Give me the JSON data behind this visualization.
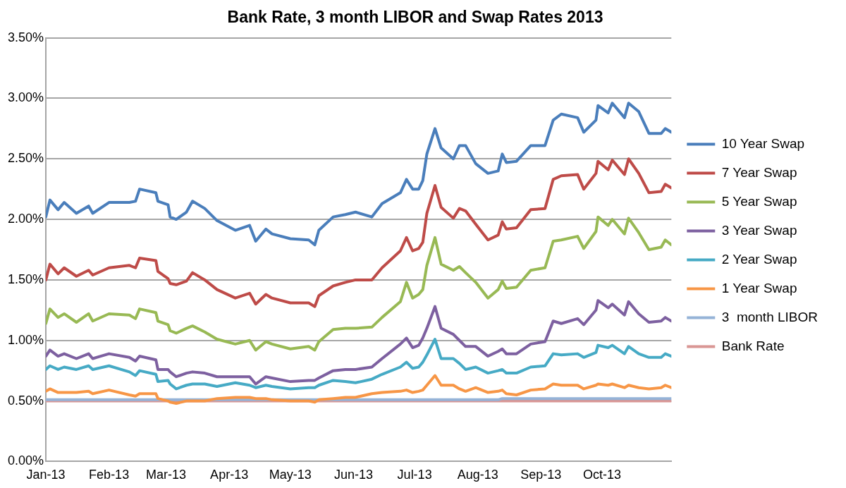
{
  "chart_data": {
    "type": "line",
    "title": "Bank Rate, 3 month LIBOR and Swap Rates 2013",
    "x": [
      "2013-01-01",
      "2013-01-03",
      "2013-01-07",
      "2013-01-10",
      "2013-01-16",
      "2013-01-22",
      "2013-01-24",
      "2013-02-01",
      "2013-02-11",
      "2013-02-14",
      "2013-02-16",
      "2013-02-24",
      "2013-02-25",
      "2013-03-02",
      "2013-03-03",
      "2013-03-06",
      "2013-03-11",
      "2013-03-14",
      "2013-03-20",
      "2013-03-26",
      "2013-04-04",
      "2013-04-11",
      "2013-04-14",
      "2013-04-19",
      "2013-04-22",
      "2013-05-01",
      "2013-05-10",
      "2013-05-13",
      "2013-05-15",
      "2013-05-22",
      "2013-05-28",
      "2013-06-02",
      "2013-06-10",
      "2013-06-15",
      "2013-06-24",
      "2013-06-27",
      "2013-06-30",
      "2013-07-03",
      "2013-07-05",
      "2013-07-07",
      "2013-07-11",
      "2013-07-14",
      "2013-07-20",
      "2013-07-23",
      "2013-07-26",
      "2013-07-31",
      "2013-08-06",
      "2013-08-11",
      "2013-08-13",
      "2013-08-15",
      "2013-08-20",
      "2013-08-27",
      "2013-09-03",
      "2013-09-07",
      "2013-09-11",
      "2013-09-19",
      "2013-09-22",
      "2013-09-28",
      "2013-09-29",
      "2013-10-04",
      "2013-10-06",
      "2013-10-12",
      "2013-10-14",
      "2013-10-19",
      "2013-10-24",
      "2013-10-30",
      "2013-11-01",
      "2013-11-04"
    ],
    "series": [
      {
        "name": "10 Year Swap",
        "color": "#4a7ebb",
        "values": [
          2.02,
          2.16,
          2.08,
          2.14,
          2.05,
          2.11,
          2.05,
          2.14,
          2.14,
          2.15,
          2.25,
          2.22,
          2.15,
          2.12,
          2.02,
          2.0,
          2.06,
          2.15,
          2.09,
          1.99,
          1.91,
          1.95,
          1.82,
          1.92,
          1.88,
          1.84,
          1.83,
          1.79,
          1.91,
          2.02,
          2.04,
          2.06,
          2.02,
          2.13,
          2.22,
          2.33,
          2.25,
          2.25,
          2.32,
          2.54,
          2.75,
          2.59,
          2.5,
          2.61,
          2.61,
          2.46,
          2.38,
          2.4,
          2.54,
          2.47,
          2.48,
          2.61,
          2.61,
          2.82,
          2.87,
          2.84,
          2.72,
          2.82,
          2.94,
          2.88,
          2.96,
          2.84,
          2.96,
          2.89,
          2.71,
          2.71,
          2.75,
          2.72
        ]
      },
      {
        "name": "7 Year Swap",
        "color": "#be4b48",
        "values": [
          1.5,
          1.63,
          1.55,
          1.6,
          1.53,
          1.58,
          1.54,
          1.6,
          1.62,
          1.6,
          1.68,
          1.66,
          1.57,
          1.51,
          1.47,
          1.46,
          1.49,
          1.56,
          1.5,
          1.42,
          1.35,
          1.39,
          1.3,
          1.38,
          1.35,
          1.31,
          1.31,
          1.28,
          1.37,
          1.45,
          1.48,
          1.5,
          1.5,
          1.6,
          1.74,
          1.85,
          1.74,
          1.76,
          1.81,
          2.05,
          2.28,
          2.1,
          2.01,
          2.09,
          2.07,
          1.96,
          1.83,
          1.87,
          1.98,
          1.92,
          1.93,
          2.08,
          2.09,
          2.33,
          2.36,
          2.37,
          2.25,
          2.38,
          2.48,
          2.41,
          2.49,
          2.37,
          2.5,
          2.38,
          2.22,
          2.23,
          2.29,
          2.26
        ]
      },
      {
        "name": "5 Year Swap",
        "color": "#98b954",
        "values": [
          1.14,
          1.26,
          1.19,
          1.22,
          1.15,
          1.22,
          1.16,
          1.22,
          1.21,
          1.18,
          1.26,
          1.23,
          1.16,
          1.13,
          1.08,
          1.06,
          1.1,
          1.12,
          1.07,
          1.01,
          0.97,
          1.0,
          0.92,
          0.99,
          0.97,
          0.93,
          0.95,
          0.92,
          0.99,
          1.09,
          1.1,
          1.1,
          1.11,
          1.19,
          1.32,
          1.48,
          1.35,
          1.38,
          1.42,
          1.62,
          1.85,
          1.63,
          1.58,
          1.61,
          1.56,
          1.48,
          1.35,
          1.42,
          1.49,
          1.43,
          1.44,
          1.58,
          1.6,
          1.82,
          1.83,
          1.86,
          1.76,
          1.9,
          2.02,
          1.95,
          2.0,
          1.88,
          2.01,
          1.89,
          1.75,
          1.77,
          1.83,
          1.79
        ]
      },
      {
        "name": "3 Year Swap",
        "color": "#7d60a0",
        "values": [
          0.87,
          0.92,
          0.87,
          0.89,
          0.85,
          0.89,
          0.85,
          0.89,
          0.86,
          0.83,
          0.87,
          0.84,
          0.76,
          0.76,
          0.74,
          0.7,
          0.73,
          0.74,
          0.73,
          0.7,
          0.7,
          0.7,
          0.64,
          0.7,
          0.69,
          0.66,
          0.67,
          0.67,
          0.69,
          0.75,
          0.76,
          0.76,
          0.78,
          0.85,
          0.97,
          1.02,
          0.94,
          0.96,
          1.02,
          1.1,
          1.28,
          1.1,
          1.05,
          1.0,
          0.95,
          0.95,
          0.87,
          0.91,
          0.93,
          0.89,
          0.89,
          0.97,
          0.99,
          1.16,
          1.14,
          1.18,
          1.13,
          1.25,
          1.33,
          1.27,
          1.3,
          1.21,
          1.32,
          1.22,
          1.15,
          1.16,
          1.19,
          1.16
        ]
      },
      {
        "name": "2 Year Swap",
        "color": "#46aac5",
        "values": [
          0.76,
          0.79,
          0.76,
          0.78,
          0.76,
          0.79,
          0.76,
          0.79,
          0.74,
          0.71,
          0.75,
          0.72,
          0.66,
          0.67,
          0.64,
          0.6,
          0.63,
          0.64,
          0.64,
          0.62,
          0.65,
          0.63,
          0.61,
          0.63,
          0.62,
          0.6,
          0.61,
          0.61,
          0.63,
          0.67,
          0.66,
          0.65,
          0.68,
          0.72,
          0.78,
          0.82,
          0.77,
          0.78,
          0.82,
          0.88,
          1.01,
          0.85,
          0.85,
          0.81,
          0.76,
          0.78,
          0.73,
          0.75,
          0.76,
          0.73,
          0.73,
          0.78,
          0.79,
          0.89,
          0.88,
          0.89,
          0.86,
          0.9,
          0.96,
          0.94,
          0.96,
          0.89,
          0.95,
          0.89,
          0.86,
          0.86,
          0.89,
          0.87
        ]
      },
      {
        "name": "1 Year Swap",
        "color": "#f79646",
        "values": [
          0.58,
          0.6,
          0.57,
          0.57,
          0.57,
          0.58,
          0.56,
          0.59,
          0.55,
          0.54,
          0.56,
          0.56,
          0.52,
          0.5,
          0.49,
          0.48,
          0.5,
          0.5,
          0.5,
          0.52,
          0.53,
          0.53,
          0.52,
          0.52,
          0.51,
          0.5,
          0.5,
          0.49,
          0.51,
          0.52,
          0.53,
          0.53,
          0.56,
          0.57,
          0.58,
          0.59,
          0.57,
          0.58,
          0.59,
          0.63,
          0.71,
          0.63,
          0.63,
          0.6,
          0.58,
          0.61,
          0.57,
          0.58,
          0.59,
          0.56,
          0.55,
          0.59,
          0.6,
          0.64,
          0.63,
          0.63,
          0.6,
          0.63,
          0.64,
          0.63,
          0.64,
          0.61,
          0.63,
          0.61,
          0.6,
          0.61,
          0.63,
          0.61
        ]
      },
      {
        "name": "3  month LIBOR",
        "color": "#95b3d7",
        "values": [
          0.51,
          0.51,
          0.51,
          0.51,
          0.51,
          0.51,
          0.51,
          0.51,
          0.51,
          0.51,
          0.51,
          0.51,
          0.51,
          0.51,
          0.51,
          0.51,
          0.51,
          0.51,
          0.51,
          0.51,
          0.51,
          0.51,
          0.51,
          0.51,
          0.51,
          0.51,
          0.51,
          0.51,
          0.51,
          0.51,
          0.51,
          0.51,
          0.51,
          0.51,
          0.51,
          0.51,
          0.51,
          0.51,
          0.51,
          0.51,
          0.51,
          0.51,
          0.51,
          0.51,
          0.51,
          0.51,
          0.51,
          0.51,
          0.52,
          0.52,
          0.52,
          0.52,
          0.52,
          0.52,
          0.52,
          0.52,
          0.52,
          0.52,
          0.52,
          0.52,
          0.52,
          0.52,
          0.52,
          0.52,
          0.52,
          0.52,
          0.52,
          0.52
        ]
      },
      {
        "name": "Bank Rate",
        "color": "#d99694",
        "values": [
          0.5,
          0.5,
          0.5,
          0.5,
          0.5,
          0.5,
          0.5,
          0.5,
          0.5,
          0.5,
          0.5,
          0.5,
          0.5,
          0.5,
          0.5,
          0.5,
          0.5,
          0.5,
          0.5,
          0.5,
          0.5,
          0.5,
          0.5,
          0.5,
          0.5,
          0.5,
          0.5,
          0.5,
          0.5,
          0.5,
          0.5,
          0.5,
          0.5,
          0.5,
          0.5,
          0.5,
          0.5,
          0.5,
          0.5,
          0.5,
          0.5,
          0.5,
          0.5,
          0.5,
          0.5,
          0.5,
          0.5,
          0.5,
          0.5,
          0.5,
          0.5,
          0.5,
          0.5,
          0.5,
          0.5,
          0.5,
          0.5,
          0.5,
          0.5,
          0.5,
          0.5,
          0.5,
          0.5,
          0.5,
          0.5,
          0.5,
          0.5,
          0.5
        ]
      }
    ],
    "xlim": [
      "2013-01-01",
      "2013-11-04"
    ],
    "xticks": [
      {
        "value": "2013-01-01",
        "label": "Jan-13"
      },
      {
        "value": "2013-02-01",
        "label": "Feb-13"
      },
      {
        "value": "2013-03-01",
        "label": "Mar-13"
      },
      {
        "value": "2013-04-01",
        "label": "Apr-13"
      },
      {
        "value": "2013-05-01",
        "label": "May-13"
      },
      {
        "value": "2013-06-01",
        "label": "Jun-13"
      },
      {
        "value": "2013-07-01",
        "label": "Jul-13"
      },
      {
        "value": "2013-08-01",
        "label": "Aug-13"
      },
      {
        "value": "2013-09-01",
        "label": "Sep-13"
      },
      {
        "value": "2013-10-01",
        "label": "Oct-13"
      }
    ],
    "ylim": [
      0,
      3.5
    ],
    "yticks": [
      {
        "value": 0,
        "label": "0.00%"
      },
      {
        "value": 0.5,
        "label": "0.50%"
      },
      {
        "value": 1,
        "label": "1.00%"
      },
      {
        "value": 1.5,
        "label": "1.50%"
      },
      {
        "value": 2,
        "label": "2.00%"
      },
      {
        "value": 2.5,
        "label": "2.50%"
      },
      {
        "value": 3,
        "label": "3.00%"
      },
      {
        "value": 3.5,
        "label": "3.50%"
      }
    ],
    "grid": "y",
    "legend": "right",
    "marker": "none",
    "line_style": "solid"
  }
}
